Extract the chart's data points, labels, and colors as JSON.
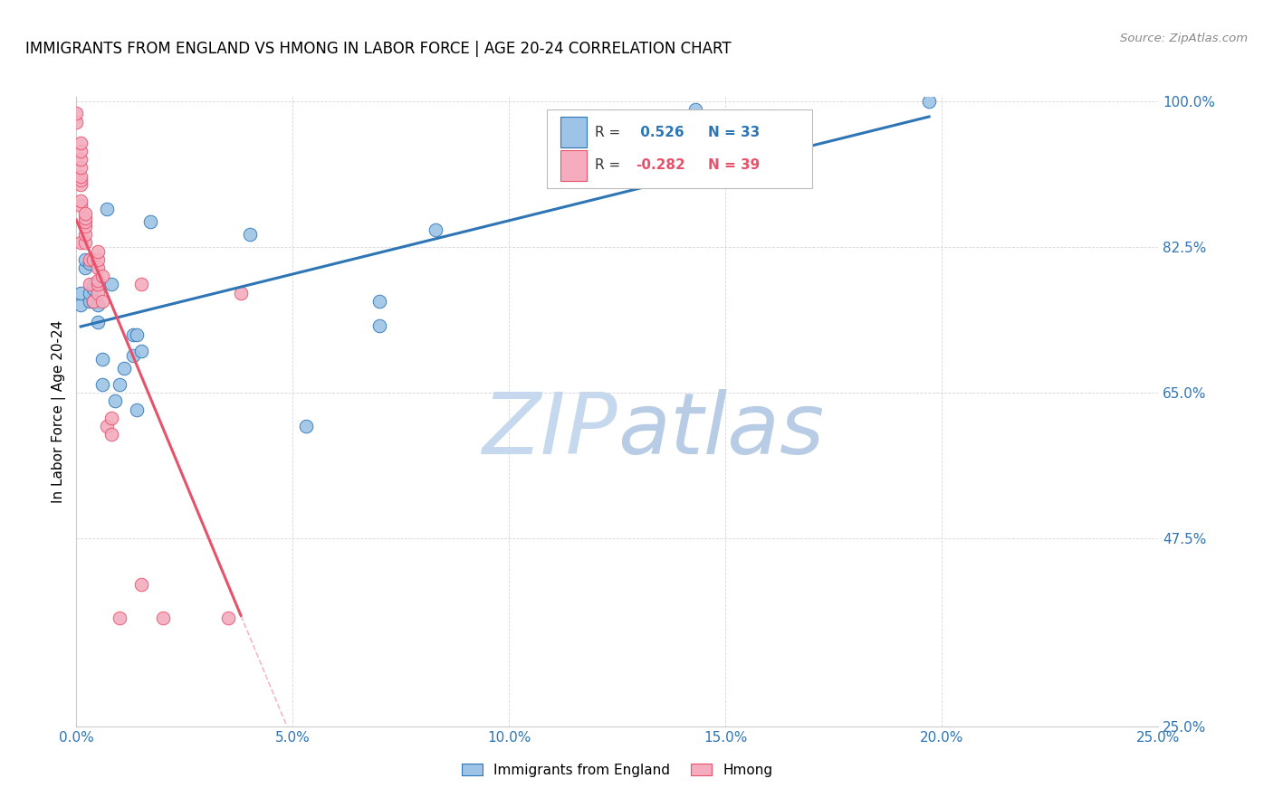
{
  "title": "IMMIGRANTS FROM ENGLAND VS HMONG IN LABOR FORCE | AGE 20-24 CORRELATION CHART",
  "source": "Source: ZipAtlas.com",
  "ylabel": "In Labor Force | Age 20-24",
  "xlim": [
    0.0,
    0.25
  ],
  "ylim": [
    0.25,
    1.005
  ],
  "xticks": [
    0.0,
    0.05,
    0.1,
    0.15,
    0.2,
    0.25
  ],
  "yticks": [
    0.25,
    0.475,
    0.65,
    0.825,
    1.0
  ],
  "xticklabels": [
    "0.0%",
    "5.0%",
    "10.0%",
    "15.0%",
    "20.0%",
    "25.0%"
  ],
  "yticklabels": [
    "25.0%",
    "47.5%",
    "65.0%",
    "82.5%",
    "100.0%"
  ],
  "england_color": "#9DC3E6",
  "hmong_color": "#F4ACBE",
  "england_line_color": "#2E75B6",
  "hmong_line_color": "#E8516A",
  "watermark_zip_color": "#C5D8EE",
  "watermark_atlas_color": "#B8CDE5",
  "england_x": [
    0.001,
    0.001,
    0.002,
    0.002,
    0.003,
    0.003,
    0.003,
    0.004,
    0.004,
    0.004,
    0.005,
    0.005,
    0.006,
    0.006,
    0.007,
    0.008,
    0.009,
    0.01,
    0.011,
    0.013,
    0.013,
    0.014,
    0.014,
    0.015,
    0.017,
    0.04,
    0.053,
    0.07,
    0.07,
    0.083,
    0.143,
    0.168,
    0.197
  ],
  "england_y": [
    0.755,
    0.77,
    0.8,
    0.81,
    0.76,
    0.77,
    0.805,
    0.76,
    0.775,
    0.78,
    0.735,
    0.755,
    0.66,
    0.69,
    0.87,
    0.78,
    0.64,
    0.66,
    0.68,
    0.695,
    0.72,
    0.63,
    0.72,
    0.7,
    0.855,
    0.84,
    0.61,
    0.73,
    0.76,
    0.845,
    0.99,
    0.97,
    1.0
  ],
  "hmong_x": [
    0.0,
    0.0,
    0.001,
    0.001,
    0.001,
    0.001,
    0.001,
    0.001,
    0.001,
    0.001,
    0.001,
    0.001,
    0.002,
    0.002,
    0.002,
    0.002,
    0.002,
    0.002,
    0.003,
    0.003,
    0.004,
    0.004,
    0.005,
    0.005,
    0.005,
    0.005,
    0.005,
    0.005,
    0.006,
    0.006,
    0.007,
    0.008,
    0.008,
    0.01,
    0.015,
    0.015,
    0.02,
    0.035,
    0.038
  ],
  "hmong_y": [
    0.975,
    0.985,
    0.83,
    0.875,
    0.88,
    0.9,
    0.905,
    0.91,
    0.92,
    0.93,
    0.94,
    0.95,
    0.83,
    0.84,
    0.85,
    0.855,
    0.86,
    0.865,
    0.78,
    0.81,
    0.76,
    0.81,
    0.77,
    0.78,
    0.785,
    0.8,
    0.81,
    0.82,
    0.76,
    0.79,
    0.61,
    0.6,
    0.62,
    0.38,
    0.42,
    0.78,
    0.38,
    0.38,
    0.77
  ],
  "background_color": "#FFFFFF",
  "title_fontsize": 12,
  "tick_color": "#2E75B6"
}
